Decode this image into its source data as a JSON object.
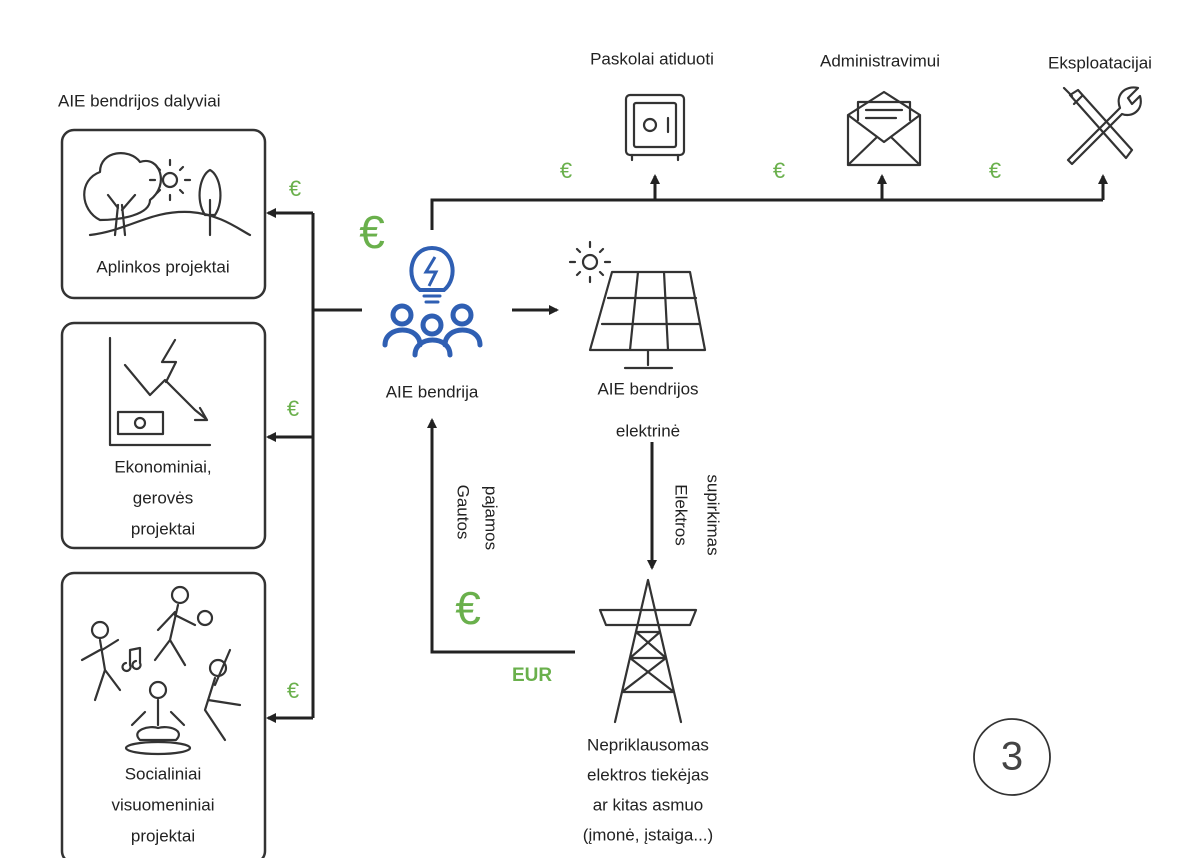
{
  "participants_label": "AIE bendrijos dalyviai",
  "boxes": [
    {
      "lines": [
        "Aplinkos projektai"
      ]
    },
    {
      "lines": [
        "Ekonominiai,",
        "gerovės",
        "projektai"
      ]
    },
    {
      "lines": [
        "Socialiniai",
        "visuomeniniai",
        "projektai"
      ]
    }
  ],
  "community": "AIE bendrija",
  "plant": {
    "lines": [
      "AIE bendrijos",
      "elektrinė"
    ]
  },
  "expenses": [
    "Paskolai atiduoti",
    "Administravimui",
    "Eksploatacijai"
  ],
  "flows": {
    "income": [
      "Gautos",
      "pajamos"
    ],
    "purchase": [
      "Elektros",
      "supirkimas"
    ],
    "currency": "EUR"
  },
  "buyer": {
    "lines": [
      "Nepriklausomas",
      "elektros tiekėjas",
      "ar kitas asmuo",
      "(įmonė, įstaiga...)"
    ]
  },
  "euro_signs": [
    "€",
    "€",
    "€",
    "€",
    "€",
    "€",
    "€",
    "€"
  ],
  "step": "3"
}
